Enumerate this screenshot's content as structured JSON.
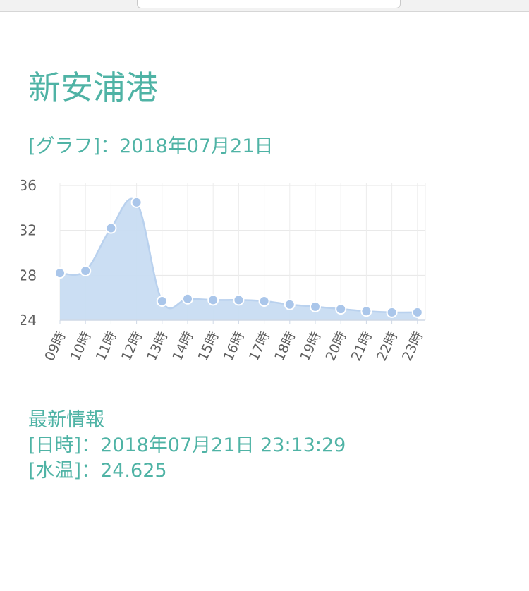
{
  "page": {
    "title": "新安浦港",
    "graph_label": "[グラフ]：",
    "graph_date": "2018年07月21日"
  },
  "info": {
    "heading": "最新情報",
    "datetime_label": "[日時]：",
    "datetime_value": "2018年07月21日 23:13:29",
    "temp_label": "[水温]：",
    "temp_value": "24.625"
  },
  "colors": {
    "accent": "#4fb3a5",
    "series_fill": "#c8dcf2",
    "series_line": "#b9d1ee",
    "point": "#aac6ea"
  },
  "chart_data": {
    "type": "area",
    "title": "",
    "xlabel": "",
    "ylabel": "",
    "ylim": [
      24,
      36
    ],
    "y_ticks": [
      "24",
      "28",
      "32",
      "36"
    ],
    "categories": [
      "09時",
      "10時",
      "11時",
      "12時",
      "13時",
      "14時",
      "15時",
      "16時",
      "17時",
      "18時",
      "19時",
      "20時",
      "21時",
      "22時",
      "23時"
    ],
    "series": [
      {
        "values": [
          28.2,
          28.4,
          32.2,
          34.5,
          25.7,
          25.9,
          25.8,
          25.8,
          25.7,
          25.4,
          25.2,
          25.0,
          24.8,
          24.7,
          24.7
        ]
      }
    ],
    "grid": true,
    "legend": "none"
  }
}
